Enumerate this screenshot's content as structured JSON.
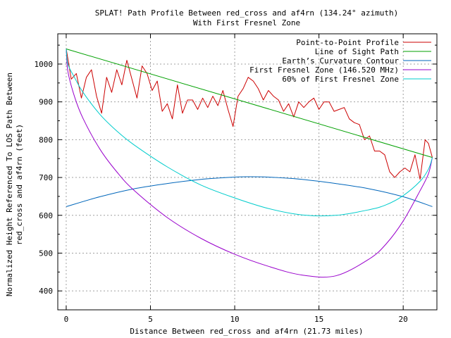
{
  "chart_data": {
    "type": "line",
    "title": "SPLAT! Path Profile Between red_cross and af4rn (134.24° azimuth)",
    "subtitle": "With First Fresnel Zone",
    "xlabel": "Distance Between red_cross and af4rn (21.73 miles)",
    "ylabel": "Normalized Height Referenced To LOS Path Between",
    "ylabel2": "red_cross and af4rn (feet)",
    "xlim": [
      -0.5,
      22
    ],
    "ylim": [
      350,
      1080
    ],
    "xticks": [
      0,
      5,
      10,
      15,
      20
    ],
    "yticks": [
      400,
      500,
      600,
      700,
      800,
      900,
      1000
    ],
    "grid": true,
    "legend_position": "top-right",
    "path_length": 21.73,
    "series": [
      {
        "name": "Point-to-Point Profile",
        "color": "#cc0000",
        "x": [
          0,
          0.3,
          0.6,
          0.9,
          1.2,
          1.5,
          1.8,
          2.1,
          2.4,
          2.7,
          3.0,
          3.3,
          3.6,
          3.9,
          4.2,
          4.5,
          4.8,
          5.1,
          5.4,
          5.7,
          6.0,
          6.3,
          6.6,
          6.9,
          7.2,
          7.5,
          7.8,
          8.1,
          8.4,
          8.7,
          9.0,
          9.3,
          9.6,
          9.9,
          10.2,
          10.5,
          10.8,
          11.1,
          11.4,
          11.7,
          12.0,
          12.3,
          12.6,
          12.9,
          13.2,
          13.5,
          13.8,
          14.1,
          14.4,
          14.7,
          15.0,
          15.3,
          15.6,
          15.9,
          16.2,
          16.5,
          16.8,
          17.1,
          17.4,
          17.7,
          18.0,
          18.3,
          18.6,
          18.9,
          19.2,
          19.5,
          19.8,
          20.1,
          20.4,
          20.7,
          21.0,
          21.3,
          21.5,
          21.73
        ],
        "values": [
          1040,
          960,
          975,
          910,
          965,
          985,
          915,
          870,
          965,
          925,
          985,
          945,
          1010,
          960,
          910,
          995,
          975,
          930,
          955,
          875,
          895,
          855,
          945,
          870,
          905,
          905,
          880,
          910,
          885,
          915,
          890,
          930,
          880,
          835,
          915,
          935,
          965,
          955,
          935,
          905,
          930,
          915,
          905,
          875,
          895,
          860,
          900,
          885,
          900,
          910,
          880,
          900,
          900,
          875,
          880,
          885,
          855,
          845,
          840,
          800,
          810,
          770,
          770,
          760,
          715,
          700,
          715,
          725,
          715,
          760,
          695,
          800,
          790,
          753
        ]
      },
      {
        "name": "Line of Sight Path",
        "color": "#00a000",
        "x": [
          0,
          21.73
        ],
        "values": [
          1040,
          753
        ]
      },
      {
        "name": "Earth’s Curvature Contour",
        "color": "#0066bb",
        "x": [
          0,
          2,
          4,
          6,
          8,
          10,
          10.865,
          12,
          14,
          16,
          18,
          20,
          21.73
        ],
        "values": [
          623,
          649,
          670,
          684,
          695,
          701,
          702,
          701,
          695,
          684,
          670,
          649,
          623
        ]
      },
      {
        "name": "First Fresnel Zone (146.520 MHz)",
        "color": "#9900cc",
        "x": [
          0,
          0.1,
          0.5,
          1,
          2,
          3,
          4,
          6,
          8,
          10,
          12,
          14,
          16,
          18,
          19,
          20,
          21,
          21.5,
          21.73
        ],
        "values": [
          1040,
          981,
          913,
          856,
          775,
          715,
          667,
          594,
          539,
          497,
          465,
          442,
          440,
          485,
          525,
          585,
          665,
          710,
          753
        ]
      },
      {
        "name": "60% of First Fresnel Zone",
        "color": "#00cccc",
        "x": [
          0,
          0.1,
          0.5,
          1,
          2,
          3,
          4,
          6,
          8,
          10,
          12,
          14,
          16,
          18,
          19,
          20,
          21,
          21.5,
          21.73
        ],
        "values": [
          1040,
          1000,
          964,
          925,
          867,
          823,
          787,
          728,
          680,
          646,
          618,
          601,
          600,
          615,
          628,
          652,
          690,
          722,
          753
        ]
      }
    ]
  }
}
